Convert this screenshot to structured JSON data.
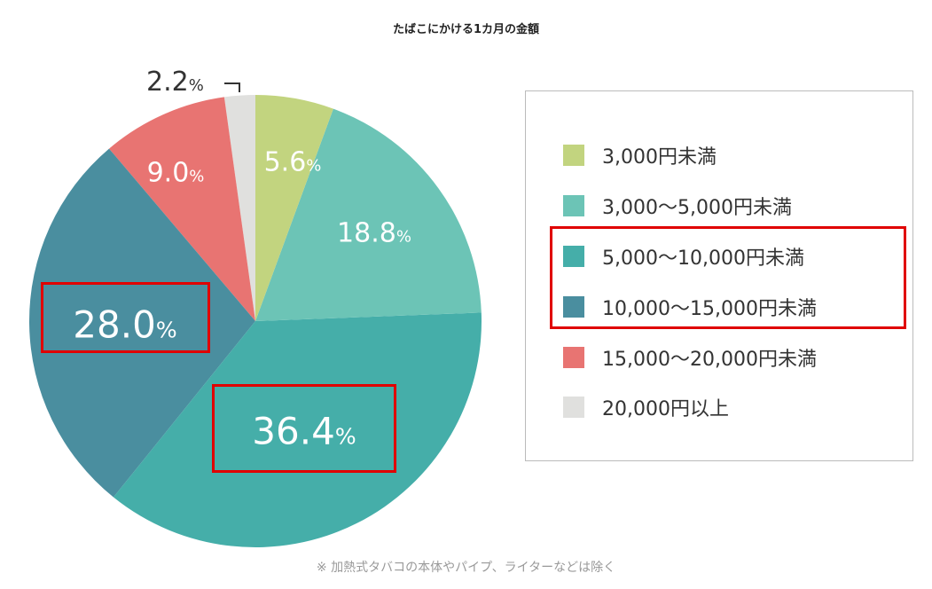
{
  "chart_data": {
    "type": "pie",
    "title": "たばこにかける1カ月の金額",
    "unit": "%",
    "slices": [
      {
        "label": "3,000円未満",
        "value": 5.6,
        "color": "#c2d47f"
      },
      {
        "label": "3,000〜5,000円未満",
        "value": 18.8,
        "color": "#6cc4b6"
      },
      {
        "label": "5,000〜10,000円未満",
        "value": 36.4,
        "color": "#45aea9"
      },
      {
        "label": "10,000〜15,000円未満",
        "value": 28.0,
        "color": "#4a8e9f"
      },
      {
        "label": "15,000〜20,000円未満",
        "value": 9.0,
        "color": "#e87472"
      },
      {
        "label": "20,000円以上",
        "value": 2.2,
        "color": "#e0e0de"
      }
    ],
    "value_labels": [
      "5.6",
      "18.8",
      "36.4",
      "28.0",
      "9.0",
      "2.2"
    ],
    "percent_sign": "%",
    "legend_position": "right",
    "highlighted": [
      "5,000〜10,000円未満",
      "10,000〜15,000円未満"
    ],
    "note": "※ 加熱式タバコの本体やパイプ、ライターなどは除く"
  }
}
